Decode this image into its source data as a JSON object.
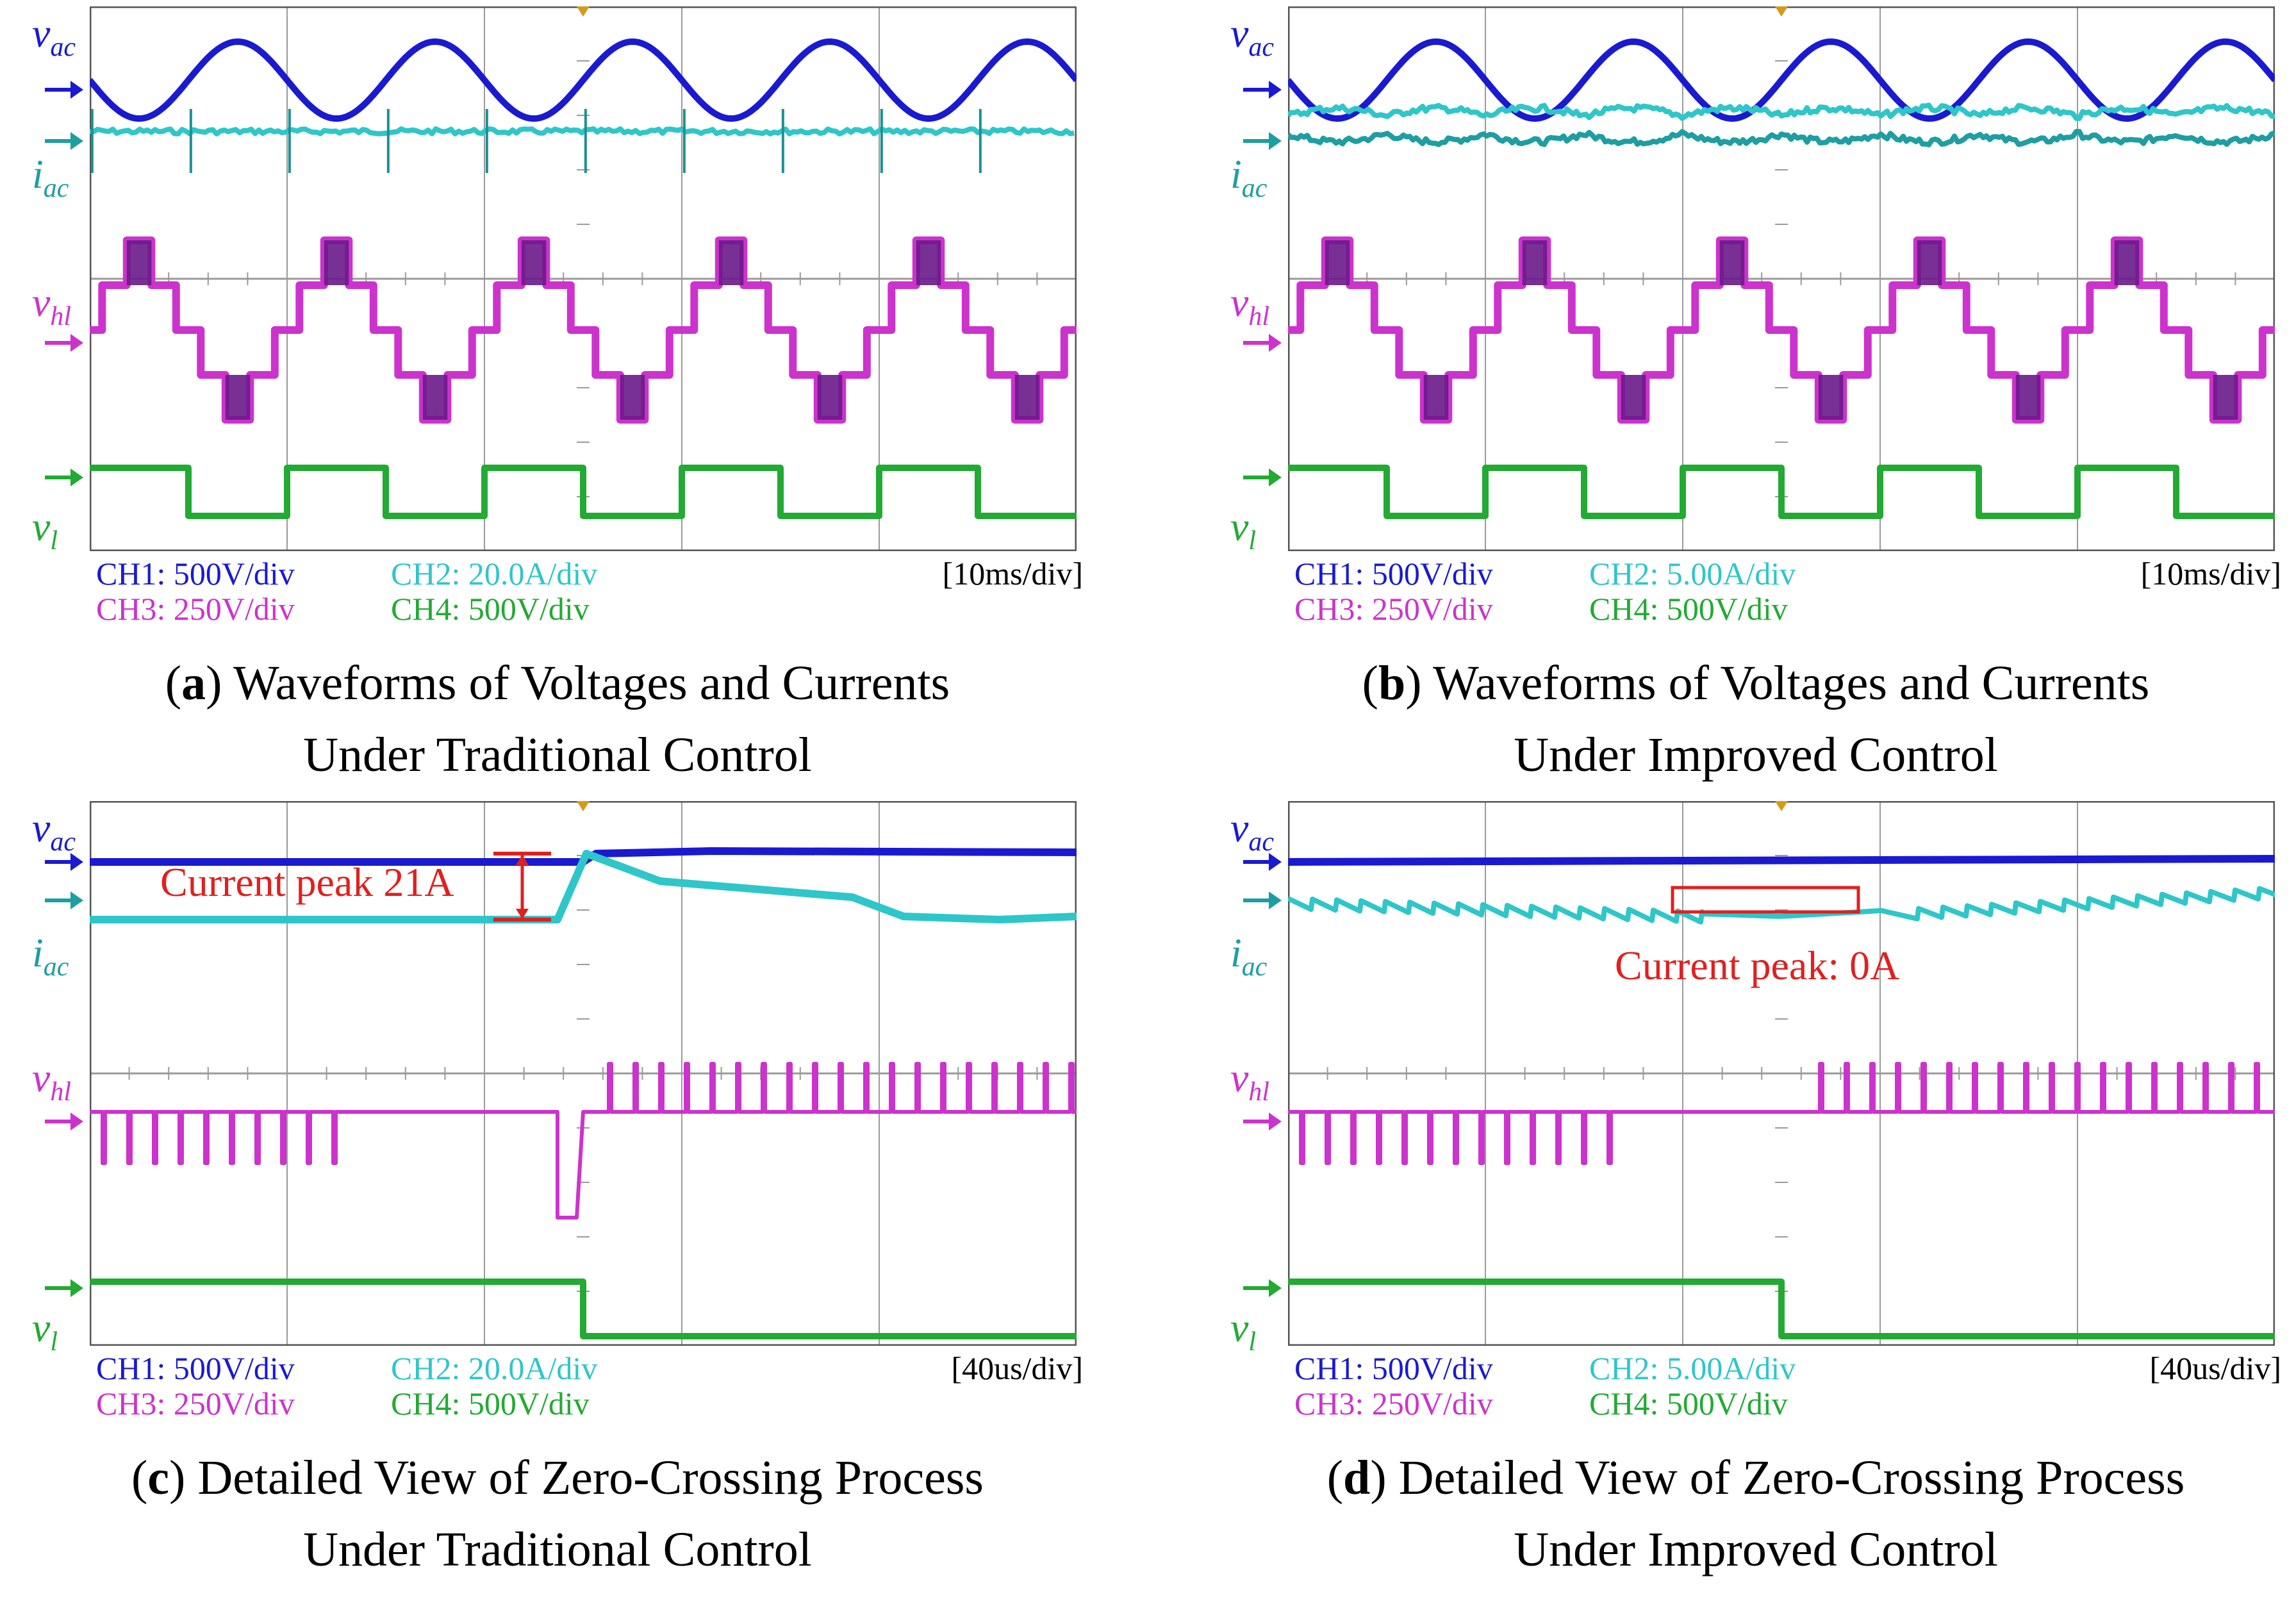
{
  "colors": {
    "ch1": "#1a1ad0",
    "ch2": "#2fc6c9",
    "ch3": "#cc33cc",
    "ch3dark": "#6a1a8a",
    "ch4": "#22aa33",
    "annot": "#e02020",
    "grid": "#9a9a9a"
  },
  "labels": {
    "vac": {
      "main": "v",
      "sub": "ac"
    },
    "iac": {
      "main": "i",
      "sub": "ac"
    },
    "vhl": {
      "main": "v",
      "sub": "hl"
    },
    "vl": {
      "main": "v",
      "sub": "l"
    }
  },
  "panels": [
    {
      "id": "a",
      "time_div": "[10ms/div]",
      "ch1": "CH1: 500V/div",
      "ch2": "CH2: 20.0A/div",
      "ch3": "CH3: 250V/div",
      "ch4": "CH4: 500V/div",
      "caption_letter": "a",
      "caption_line1": " Waveforms of Voltages and Currents",
      "caption_line2": "Under Traditional Control"
    },
    {
      "id": "b",
      "time_div": "[10ms/div]",
      "ch1": "CH1: 500V/div",
      "ch2": "CH2: 5.00A/div",
      "ch3": "CH3: 250V/div",
      "ch4": "CH4: 500V/div",
      "caption_letter": "b",
      "caption_line1": " Waveforms of Voltages and Currents",
      "caption_line2": "Under Improved Control"
    },
    {
      "id": "c",
      "time_div": "[40us/div]",
      "ch1": "CH1: 500V/div",
      "ch2": "CH2: 20.0A/div",
      "ch3": "CH3: 250V/div",
      "ch4": "CH4: 500V/div",
      "caption_letter": "c",
      "caption_line1": " Detailed View of Zero-Crossing Process",
      "caption_line2": "Under Traditional Control",
      "annotation": "Current peak 21A"
    },
    {
      "id": "d",
      "time_div": "[40us/div]",
      "ch1": "CH1: 500V/div",
      "ch2": "CH2: 5.00A/div",
      "ch3": "CH3: 250V/div",
      "ch4": "CH4: 500V/div",
      "caption_letter": "d",
      "caption_line1": " Detailed View of Zero-Crossing Process",
      "caption_line2": "Under Improved Control",
      "annotation": "Current peak: 0A"
    }
  ],
  "chart_data": [
    {
      "type": "line",
      "title": "(a) Waveforms of Voltages and Currents Under Traditional Control",
      "xlabel": "time (10ms/div)",
      "grid": true,
      "series": [
        {
          "name": "vac",
          "description": "sinusoidal grid voltage, ~5 cycles across screen"
        },
        {
          "name": "iac",
          "description": "near-constant current with spikes at zero crossings"
        },
        {
          "name": "vhl",
          "description": "multilevel staircase voltage"
        },
        {
          "name": "vl",
          "description": "square wave, unfolding"
        }
      ]
    },
    {
      "type": "line",
      "title": "(b) Waveforms of Voltages and Currents Under Improved Control",
      "xlabel": "time (10ms/div)",
      "grid": true,
      "series": [
        {
          "name": "vac",
          "description": "sinusoidal grid voltage"
        },
        {
          "name": "iac",
          "description": "ripple current without spikes"
        },
        {
          "name": "vhl",
          "description": "multilevel staircase voltage"
        },
        {
          "name": "vl",
          "description": "square wave"
        }
      ]
    },
    {
      "type": "line",
      "title": "(c) Detailed View of Zero-Crossing Process Under Traditional Control",
      "xlabel": "time (40us/div)",
      "grid": true,
      "annotation": {
        "text": "Current peak 21A",
        "value_A": 21
      }
    },
    {
      "type": "line",
      "title": "(d) Detailed View of Zero-Crossing Process Under Improved Control",
      "xlabel": "time (40us/div)",
      "grid": true,
      "annotation": {
        "text": "Current peak: 0A",
        "value_A": 0
      }
    }
  ]
}
